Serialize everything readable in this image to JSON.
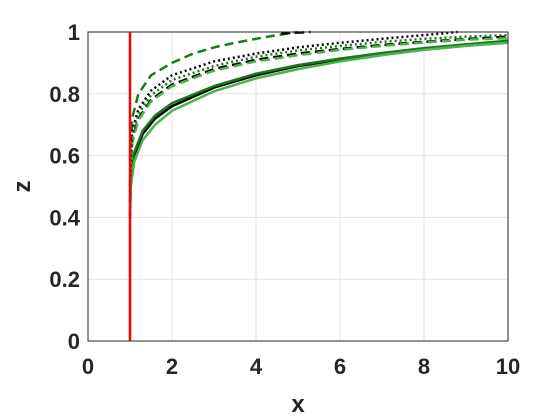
{
  "chart_data": {
    "type": "line",
    "title": "",
    "xlabel": "x",
    "ylabel": "z",
    "xlim": [
      0,
      10
    ],
    "ylim": [
      0,
      1
    ],
    "xticks": [
      "0",
      "2",
      "4",
      "6",
      "8",
      "10"
    ],
    "yticks": [
      "0",
      "0.2",
      "0.4",
      "0.6",
      "0.8",
      "1"
    ],
    "grid": true,
    "legend": "none",
    "vertical_line": {
      "x": 1.0,
      "color": "#ff0000"
    },
    "series": [
      {
        "style": "solid",
        "color": "#000000",
        "x": [
          1.0,
          1.02,
          1.1,
          1.3,
          1.6,
          2.0,
          3.0,
          4.0,
          5.0,
          6.0,
          7.0,
          8.0,
          9.0,
          10.0
        ],
        "y": [
          0.4,
          0.52,
          0.6,
          0.67,
          0.72,
          0.76,
          0.82,
          0.86,
          0.89,
          0.91,
          0.93,
          0.945,
          0.957,
          0.968
        ]
      },
      {
        "style": "solid",
        "color": "#1a7a1a",
        "x": [
          1.0,
          1.02,
          1.1,
          1.3,
          1.6,
          2.0,
          3.0,
          4.0,
          5.0,
          6.0,
          7.0,
          8.0,
          9.0,
          10.0
        ],
        "y": [
          0.4,
          0.53,
          0.61,
          0.68,
          0.73,
          0.77,
          0.825,
          0.865,
          0.893,
          0.914,
          0.932,
          0.948,
          0.96,
          0.972
        ]
      },
      {
        "style": "solid",
        "color": "#4cb34c",
        "x": [
          1.0,
          1.02,
          1.1,
          1.3,
          1.6,
          2.0,
          3.0,
          4.0,
          5.0,
          6.0,
          7.0,
          8.0,
          9.0,
          10.0
        ],
        "y": [
          0.4,
          0.5,
          0.58,
          0.65,
          0.7,
          0.745,
          0.808,
          0.85,
          0.88,
          0.905,
          0.925,
          0.942,
          0.955,
          0.965
        ]
      },
      {
        "style": "dashed",
        "color": "#1a7a1a",
        "x": [
          1.0,
          1.05,
          1.2,
          1.5,
          2.0,
          2.5,
          3.0,
          3.5,
          4.0,
          4.5,
          5.0
        ],
        "y": [
          0.5,
          0.72,
          0.8,
          0.86,
          0.9,
          0.93,
          0.95,
          0.965,
          0.978,
          0.99,
          1.0
        ]
      },
      {
        "style": "dashed",
        "color": "#000000",
        "x": [
          4.6,
          5.3
        ],
        "y": [
          0.995,
          1.0
        ]
      },
      {
        "style": "dashed",
        "color": "#000000",
        "x": [
          1.0,
          1.05,
          1.2,
          1.5,
          2.0,
          3.0,
          4.0,
          5.0,
          6.0,
          7.0,
          8.0,
          9.0,
          10.0
        ],
        "y": [
          0.45,
          0.65,
          0.72,
          0.78,
          0.83,
          0.88,
          0.91,
          0.93,
          0.945,
          0.958,
          0.968,
          0.977,
          0.985
        ]
      },
      {
        "style": "dashed",
        "color": "#4cb34c",
        "x": [
          1.0,
          1.05,
          1.2,
          1.5,
          2.0,
          3.0,
          4.0,
          5.0,
          6.0,
          7.0,
          8.0,
          9.0,
          10.0
        ],
        "y": [
          0.45,
          0.64,
          0.715,
          0.775,
          0.825,
          0.875,
          0.905,
          0.925,
          0.942,
          0.955,
          0.966,
          0.975,
          0.98
        ]
      },
      {
        "style": "dotted",
        "color": "#000000",
        "x": [
          1.0,
          1.05,
          1.2,
          1.5,
          2.0,
          3.0,
          4.0,
          5.0,
          6.0,
          7.0,
          8.0,
          8.8
        ],
        "y": [
          0.5,
          0.68,
          0.75,
          0.81,
          0.86,
          0.905,
          0.93,
          0.95,
          0.965,
          0.978,
          0.99,
          1.0
        ]
      },
      {
        "style": "dotted",
        "color": "#1a7a1a",
        "x": [
          1.0,
          1.05,
          1.2,
          1.5,
          2.0,
          3.0,
          4.0,
          5.0,
          6.0,
          7.0,
          8.0,
          9.0,
          10.0
        ],
        "y": [
          0.48,
          0.66,
          0.735,
          0.795,
          0.845,
          0.89,
          0.92,
          0.94,
          0.955,
          0.968,
          0.978,
          0.985,
          0.99
        ]
      }
    ]
  }
}
